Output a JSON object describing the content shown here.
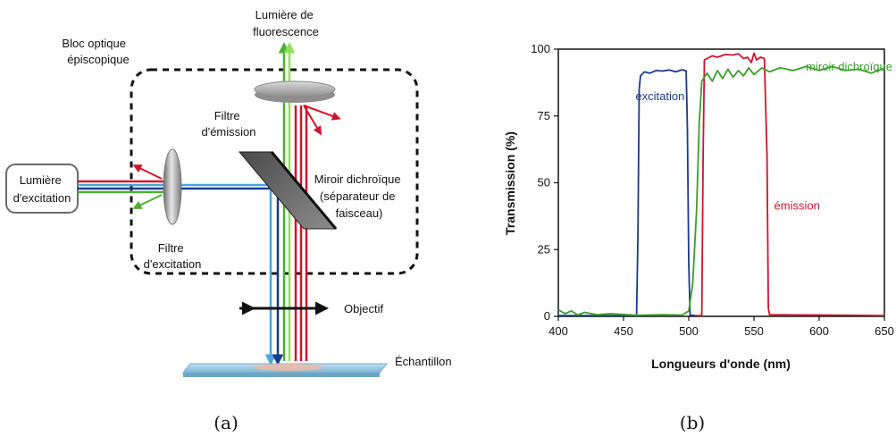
{
  "diagram": {
    "excitation_source": [
      "Lumière",
      "d'excitation"
    ],
    "fluorescence_light": [
      "Lumière de",
      "fluorescence"
    ],
    "filter_block": [
      "Bloc optique",
      "épiscopique"
    ],
    "emission_filter": [
      "Filtre",
      "d'émission"
    ],
    "excitation_filter": [
      "Filtre",
      "d'excitation"
    ],
    "dichroic_mirror": [
      "Miroir dichroïque",
      "(séparateur de",
      "faisceau)"
    ],
    "objective": "Objectif",
    "sample": "Échantillon",
    "caption": "(a)",
    "colors": {
      "blue": "#1b3a8c",
      "light_blue": "#4aa3df",
      "green": "#4caf30",
      "light_green": "#8fe060",
      "red": "#d0142c"
    }
  },
  "chart_data": {
    "type": "line",
    "caption": "(b)",
    "xlabel": "Longueurs d'onde (nm)",
    "ylabel": "Transmission (%)",
    "xlim": [
      400,
      650
    ],
    "ylim": [
      0,
      100
    ],
    "xticks": [
      400,
      450,
      500,
      550,
      600,
      650
    ],
    "yticks": [
      0,
      25,
      50,
      75,
      100
    ],
    "series": [
      {
        "name": "excitation",
        "color": "#1b3a8c",
        "label_anchor": [
          478,
          81
        ],
        "points": [
          [
            400,
            0.3
          ],
          [
            460,
            0.3
          ],
          [
            461,
            30
          ],
          [
            462,
            85
          ],
          [
            463,
            90
          ],
          [
            466,
            91.5
          ],
          [
            470,
            91
          ],
          [
            475,
            92
          ],
          [
            480,
            91.8
          ],
          [
            485,
            92.2
          ],
          [
            490,
            91.5
          ],
          [
            495,
            92.3
          ],
          [
            498,
            91.8
          ],
          [
            499,
            70
          ],
          [
            500,
            20
          ],
          [
            501,
            0.5
          ],
          [
            505,
            0.3
          ]
        ]
      },
      {
        "name": "émission",
        "color": "#d0142c",
        "label_anchor": [
          583,
          40
        ],
        "points": [
          [
            505,
            0.3
          ],
          [
            510,
            0.3
          ],
          [
            511,
            60
          ],
          [
            512,
            96
          ],
          [
            518,
            97.5
          ],
          [
            522,
            97
          ],
          [
            528,
            98
          ],
          [
            534,
            97.8
          ],
          [
            538,
            98.3
          ],
          [
            542,
            96.5
          ],
          [
            545,
            97
          ],
          [
            548,
            95
          ],
          [
            550,
            98.5
          ],
          [
            552,
            96
          ],
          [
            555,
            97
          ],
          [
            558,
            96.5
          ],
          [
            560,
            60
          ],
          [
            561,
            3
          ],
          [
            562,
            0.6
          ],
          [
            600,
            0.5
          ],
          [
            650,
            0.3
          ]
        ]
      },
      {
        "name": "miroir dichroïque",
        "color": "#3a9e2a",
        "label_anchor": [
          623,
          92
        ],
        "points": [
          [
            400,
            2.5
          ],
          [
            405,
            1
          ],
          [
            410,
            2
          ],
          [
            415,
            0.5
          ],
          [
            420,
            1.5
          ],
          [
            430,
            0.6
          ],
          [
            440,
            1
          ],
          [
            460,
            0.4
          ],
          [
            480,
            0.6
          ],
          [
            495,
            0.5
          ],
          [
            500,
            2
          ],
          [
            503,
            12
          ],
          [
            506,
            40
          ],
          [
            508,
            72
          ],
          [
            510,
            88
          ],
          [
            514,
            91
          ],
          [
            518,
            88
          ],
          [
            522,
            92
          ],
          [
            526,
            89
          ],
          [
            530,
            92.5
          ],
          [
            534,
            89.5
          ],
          [
            538,
            92
          ],
          [
            542,
            90
          ],
          [
            546,
            93
          ],
          [
            550,
            90.5
          ],
          [
            556,
            93
          ],
          [
            562,
            91.5
          ],
          [
            570,
            93
          ],
          [
            580,
            92
          ],
          [
            590,
            93.5
          ],
          [
            600,
            92
          ],
          [
            610,
            93.5
          ],
          [
            620,
            92
          ],
          [
            630,
            92.5
          ],
          [
            640,
            91
          ],
          [
            650,
            93
          ]
        ]
      }
    ]
  }
}
